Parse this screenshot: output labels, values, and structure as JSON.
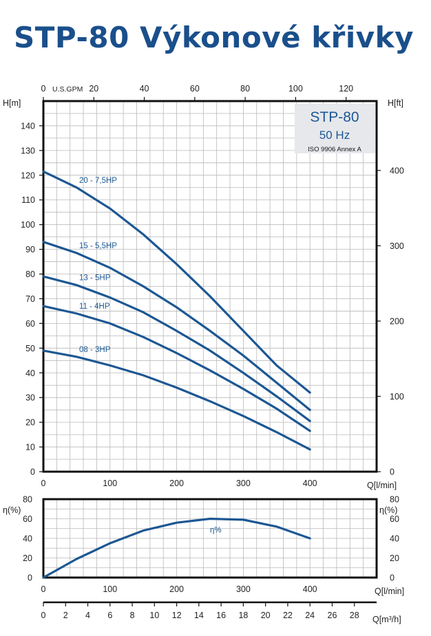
{
  "title": "STP-80 Výkonové křivky",
  "colors": {
    "curve": "#1c5793",
    "title": "#1a4f8b",
    "grid": "#b8b8b8",
    "infobox": "#e6e8ec"
  },
  "infobox": {
    "model": "STP-80",
    "freq": "50 Hz",
    "standard": "ISO 9906 Annex A"
  },
  "chart_data": [
    {
      "type": "line",
      "title": "",
      "xlabel": "Q[l/min]",
      "ylabel": "H[m]",
      "y2label": "H[ft]",
      "x2label": "U.S.GPM",
      "xlim": [
        0,
        500
      ],
      "ylim": [
        0,
        150
      ],
      "x2lim": [
        0,
        132.09
      ],
      "y2lim": [
        0,
        492.13
      ],
      "grid": true,
      "x_ticks": [
        0,
        100,
        200,
        300,
        400
      ],
      "y_ticks": [
        0,
        10,
        20,
        30,
        40,
        50,
        60,
        70,
        80,
        90,
        100,
        110,
        120,
        130,
        140
      ],
      "x2_ticks": [
        0,
        20,
        40,
        60,
        80,
        100,
        120
      ],
      "y2_ticks": [
        0,
        100,
        200,
        300,
        400
      ],
      "series": [
        {
          "name": "20 - 7,5HP",
          "x": [
            0,
            50,
            100,
            150,
            200,
            250,
            300,
            350,
            400
          ],
          "y": [
            121.5,
            115,
            106.5,
            96,
            84,
            71,
            57,
            43,
            32
          ]
        },
        {
          "name": "15 - 5,5HP",
          "x": [
            0,
            50,
            100,
            150,
            200,
            250,
            300,
            350,
            400
          ],
          "y": [
            93,
            88.5,
            82.5,
            75,
            66.5,
            57,
            47,
            36,
            25
          ]
        },
        {
          "name": "13 - 5HP",
          "x": [
            0,
            50,
            100,
            150,
            200,
            250,
            300,
            350,
            400
          ],
          "y": [
            79,
            75.5,
            70.5,
            64.5,
            57,
            49,
            40,
            30.5,
            20.5
          ]
        },
        {
          "name": "11 - 4HP",
          "x": [
            0,
            50,
            100,
            150,
            200,
            250,
            300,
            350,
            400
          ],
          "y": [
            67,
            64,
            60,
            54.5,
            48,
            41,
            33.5,
            25.5,
            16.5
          ]
        },
        {
          "name": "08 - 3HP",
          "x": [
            0,
            50,
            100,
            150,
            200,
            250,
            300,
            350,
            400
          ],
          "y": [
            49,
            46.5,
            43,
            39,
            34,
            28.5,
            22.5,
            16,
            9
          ]
        }
      ]
    },
    {
      "type": "line",
      "title": "",
      "xlabel": "Q[l/min]",
      "ylabel": "η(%)",
      "y2label": "η(%)",
      "x3label": "Q[m³/h]",
      "xlim": [
        0,
        500
      ],
      "ylim": [
        0,
        80
      ],
      "x_ticks": [
        0,
        100,
        200,
        300,
        400
      ],
      "y_ticks": [
        0,
        20,
        40,
        60,
        80
      ],
      "x3lim": [
        0,
        30
      ],
      "x3_ticks": [
        0,
        2,
        4,
        6,
        8,
        10,
        12,
        14,
        16,
        18,
        20,
        22,
        24,
        26,
        28
      ],
      "grid": true,
      "series": [
        {
          "name": "η%",
          "x": [
            0,
            50,
            100,
            150,
            200,
            250,
            300,
            350,
            400
          ],
          "y": [
            0,
            19,
            35,
            48,
            56,
            60,
            59,
            52,
            40
          ]
        }
      ]
    }
  ]
}
